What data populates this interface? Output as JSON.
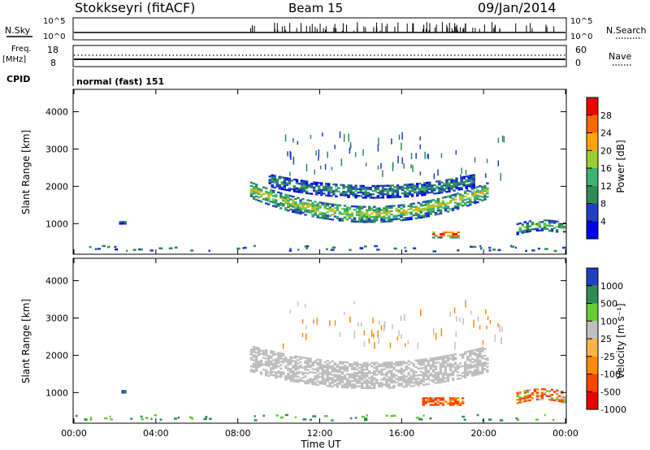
{
  "header": {
    "station": "Stokkseyri (fitACF)",
    "beam": "Beam 15",
    "date": "09/Jan/2014"
  },
  "top_panels": {
    "nsky_label": "N.Sky",
    "nsky_ticks": [
      "10^5",
      "10^0"
    ],
    "nsearch_label": "N.Search",
    "nsearch_ticks": [
      "10^5",
      "10^0"
    ],
    "freq_label": "Freq.",
    "freq_unit": "[MHz]",
    "freq_ticks": [
      "18",
      "8"
    ],
    "nave_label": "Nave",
    "nave_ticks": [
      "60",
      "0"
    ],
    "cpid_label": "CPID",
    "cpid_value": "normal (fast) 151"
  },
  "colors": {
    "power_scale": [
      "#0000ee",
      "#2040c0",
      "#2e8b57",
      "#3cb371",
      "#9acd32",
      "#ffa500",
      "#ff6600",
      "#ee0000"
    ],
    "velocity_scale": [
      "#ee0000",
      "#ff4500",
      "#ff8c00",
      "#ffb347",
      "#c0c0c0",
      "#66cc33",
      "#2e8b57",
      "#2040c0"
    ],
    "ground_scatter": "#bebebe"
  },
  "chart_data": [
    {
      "type": "heatmap",
      "name": "power",
      "xlabel": "",
      "ylabel": "Slant Range [km]",
      "xlim": [
        0,
        24
      ],
      "ylim": [
        180,
        4600
      ],
      "yticks": [
        "1000",
        "2000",
        "3000",
        "4000"
      ],
      "colorbar_label": "Power [dB]",
      "colorbar_ticks": [
        "4",
        "8",
        "12",
        "16",
        "20",
        "24",
        "28"
      ],
      "colorbar_range": [
        0,
        30
      ],
      "regions": [
        {
          "t0": 8.6,
          "t1": 20.2,
          "r_center": 1250,
          "r_width": 450,
          "sag": 650,
          "level": 12
        },
        {
          "t0": 9.5,
          "t1": 19.5,
          "r_center": 1850,
          "r_width": 350,
          "sag": 300,
          "level": 7
        },
        {
          "t0": 17.5,
          "t1": 18.8,
          "r_center": 700,
          "r_width": 180,
          "sag": 0,
          "level": 22
        },
        {
          "t0": 21.6,
          "t1": 24.0,
          "r_center": 950,
          "r_width": 300,
          "sag": -100,
          "level": 10
        },
        {
          "t0": 2.2,
          "t1": 2.5,
          "r_center": 1020,
          "r_width": 80,
          "sag": 0,
          "level": 6
        }
      ]
    },
    {
      "type": "heatmap",
      "name": "velocity",
      "xlabel": "Time UT",
      "ylabel": "Slant Range [km]",
      "xlim": [
        0,
        24
      ],
      "ylim": [
        180,
        4600
      ],
      "xticks": [
        "00:00",
        "04:00",
        "08:00",
        "12:00",
        "16:00",
        "20:00",
        "00:00"
      ],
      "yticks": [
        "1000",
        "2000",
        "3000",
        "4000"
      ],
      "colorbar_label": "Velocity [m s⁻¹]",
      "colorbar_ticks": [
        "1000",
        "500",
        "100",
        "25",
        "-25",
        "-100",
        "-500",
        "-1000"
      ],
      "regions": [
        {
          "t0": 8.6,
          "t1": 20.2,
          "r_center": 1450,
          "r_width": 700,
          "sag": 450,
          "velocity": 0
        },
        {
          "t0": 17.0,
          "t1": 19.0,
          "r_center": 750,
          "r_width": 200,
          "sag": 0,
          "velocity": -150
        },
        {
          "t0": 21.6,
          "t1": 24.0,
          "r_center": 950,
          "r_width": 300,
          "sag": -100,
          "velocity": -60
        },
        {
          "t0": 2.2,
          "t1": 2.5,
          "r_center": 1020,
          "r_width": 80,
          "sag": 0,
          "velocity": 600
        }
      ]
    }
  ]
}
